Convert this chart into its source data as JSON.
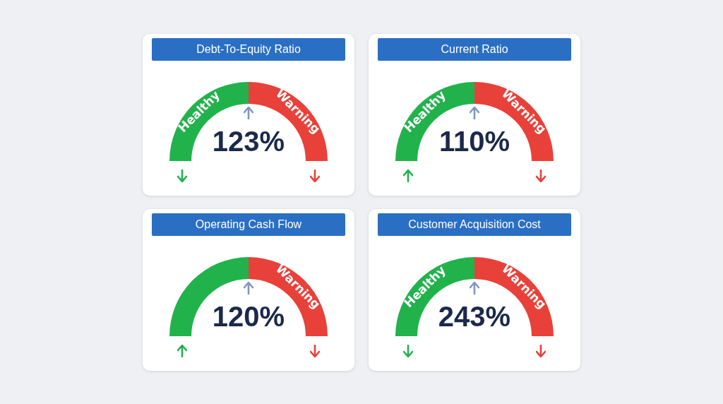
{
  "chart_data": [
    {
      "type": "donut",
      "title": "Debt-To-Equity Ratio",
      "categories": [
        "Healthy",
        "Warning"
      ],
      "values": [
        50,
        50
      ],
      "colors": [
        "#22b24c",
        "#e8413a"
      ],
      "annotations": [
        "123%"
      ]
    },
    {
      "type": "donut",
      "title": "Current Ratio",
      "categories": [
        "Healthy",
        "Warning"
      ],
      "values": [
        50,
        50
      ],
      "colors": [
        "#22b24c",
        "#e8413a"
      ],
      "annotations": [
        "110%"
      ]
    },
    {
      "type": "donut",
      "title": "Operating Cash Flow",
      "categories": [
        null,
        "Warning"
      ],
      "values": [
        50,
        50
      ],
      "colors": [
        "#22b24c",
        "#e8413a"
      ],
      "annotations": [
        "120%"
      ]
    },
    {
      "type": "donut",
      "title": "Customer Acquisition Cost",
      "categories": [
        "Healthy",
        "Warning"
      ],
      "values": [
        50,
        50
      ],
      "colors": [
        "#22b24c",
        "#e8413a"
      ],
      "annotations": [
        "243%"
      ]
    }
  ]
}
